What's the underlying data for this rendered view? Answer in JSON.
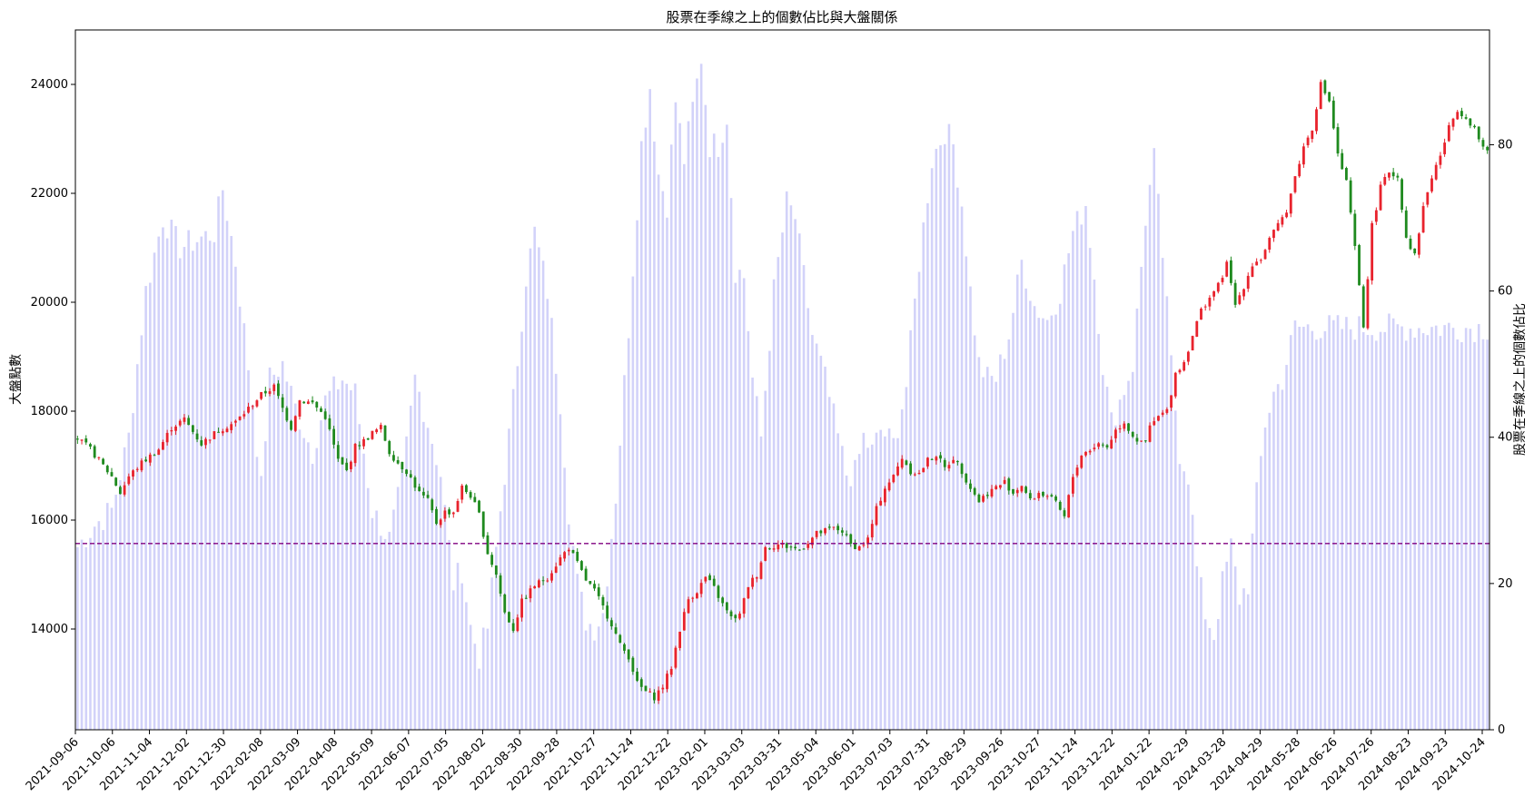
{
  "chart_data": {
    "type": "candlestick+bar",
    "title": "股票在季線之上的個數佔比與大盤關係",
    "ylabel_left": "大盤點數",
    "ylabel_right": "股票在季線之上的個數佔比",
    "x_range": [
      "2021-09-06",
      "2024-10-24"
    ],
    "x_tick_labels": [
      "2021-09-06",
      "2021-10-06",
      "2021-11-04",
      "2021-12-02",
      "2021-12-30",
      "2022-02-08",
      "2022-03-09",
      "2022-04-08",
      "2022-05-09",
      "2022-06-07",
      "2022-07-05",
      "2022-08-02",
      "2022-08-30",
      "2022-09-28",
      "2022-10-27",
      "2022-11-24",
      "2022-12-22",
      "2023-02-01",
      "2023-03-03",
      "2023-03-31",
      "2023-05-04",
      "2023-06-01",
      "2023-07-03",
      "2023-07-31",
      "2023-08-29",
      "2023-09-26",
      "2023-10-27",
      "2023-11-24",
      "2023-12-22",
      "2024-01-22",
      "2024-02-29",
      "2024-03-28",
      "2024-04-29",
      "2024-05-28",
      "2024-06-26",
      "2024-07-26",
      "2024-08-23",
      "2024-09-23",
      "2024-10-24"
    ],
    "y_left_ticks": [
      14000,
      16000,
      18000,
      20000,
      22000,
      24000
    ],
    "y_left_range": [
      12150,
      25000
    ],
    "y_right_ticks": [
      0,
      20,
      40,
      60,
      80
    ],
    "y_right_range": [
      0,
      95.7
    ],
    "reference_line": {
      "value": 15570,
      "axis": "left",
      "style": "dashed",
      "color": "#800080"
    },
    "colors": {
      "up": "#e8232d",
      "down": "#1f8a1f",
      "bar": "#b4b4f5"
    },
    "index_close_anchors": [
      [
        0,
        17500
      ],
      [
        3,
        17300
      ],
      [
        5,
        17100
      ],
      [
        8,
        16800
      ],
      [
        10,
        16500
      ],
      [
        12,
        16800
      ],
      [
        15,
        17050
      ],
      [
        19,
        17300
      ],
      [
        22,
        17700
      ],
      [
        25,
        17850
      ],
      [
        29,
        17400
      ],
      [
        33,
        17650
      ],
      [
        37,
        17800
      ],
      [
        40,
        18050
      ],
      [
        43,
        18300
      ],
      [
        46,
        18450
      ],
      [
        48,
        18050
      ],
      [
        50,
        17700
      ],
      [
        52,
        18200
      ],
      [
        55,
        18150
      ],
      [
        58,
        17900
      ],
      [
        61,
        17100
      ],
      [
        63,
        16900
      ],
      [
        65,
        17350
      ],
      [
        67,
        17450
      ],
      [
        69,
        17600
      ],
      [
        71,
        17700
      ],
      [
        73,
        17250
      ],
      [
        75,
        17050
      ],
      [
        77,
        16900
      ],
      [
        80,
        16500
      ],
      [
        82,
        16350
      ],
      [
        84,
        15950
      ],
      [
        86,
        16150
      ],
      [
        88,
        16150
      ],
      [
        90,
        16600
      ],
      [
        92,
        16450
      ],
      [
        94,
        16100
      ],
      [
        96,
        15400
      ],
      [
        98,
        15000
      ],
      [
        100,
        14300
      ],
      [
        102,
        14000
      ],
      [
        104,
        14500
      ],
      [
        107,
        14800
      ],
      [
        110,
        14950
      ],
      [
        113,
        15300
      ],
      [
        115,
        15500
      ],
      [
        117,
        15200
      ],
      [
        119,
        14900
      ],
      [
        121,
        14700
      ],
      [
        123,
        14400
      ],
      [
        125,
        14100
      ],
      [
        127,
        13700
      ],
      [
        129,
        13500
      ],
      [
        131,
        13000
      ],
      [
        133,
        12850
      ],
      [
        135,
        12750
      ],
      [
        137,
        12950
      ],
      [
        139,
        13300
      ],
      [
        141,
        14000
      ],
      [
        143,
        14550
      ],
      [
        145,
        14700
      ],
      [
        147,
        14950
      ],
      [
        149,
        14750
      ],
      [
        151,
        14450
      ],
      [
        153,
        14200
      ],
      [
        155,
        14250
      ],
      [
        157,
        14800
      ],
      [
        159,
        15000
      ],
      [
        161,
        15500
      ],
      [
        164,
        15550
      ],
      [
        167,
        15500
      ],
      [
        169,
        15450
      ],
      [
        171,
        15600
      ],
      [
        173,
        15750
      ],
      [
        175,
        15800
      ],
      [
        177,
        15850
      ],
      [
        179,
        15800
      ],
      [
        181,
        15550
      ],
      [
        183,
        15500
      ],
      [
        185,
        15650
      ],
      [
        187,
        16200
      ],
      [
        189,
        16600
      ],
      [
        191,
        16800
      ],
      [
        193,
        17150
      ],
      [
        195,
        16900
      ],
      [
        197,
        16850
      ],
      [
        199,
        17100
      ],
      [
        201,
        17200
      ],
      [
        203,
        16950
      ],
      [
        205,
        17150
      ],
      [
        207,
        16900
      ],
      [
        209,
        16600
      ],
      [
        211,
        16350
      ],
      [
        213,
        16500
      ],
      [
        215,
        16600
      ],
      [
        217,
        16700
      ],
      [
        219,
        16500
      ],
      [
        221,
        16650
      ],
      [
        223,
        16350
      ],
      [
        225,
        16500
      ],
      [
        227,
        16450
      ],
      [
        229,
        16300
      ],
      [
        231,
        16050
      ],
      [
        233,
        16800
      ],
      [
        235,
        17200
      ],
      [
        237,
        17300
      ],
      [
        239,
        17400
      ],
      [
        241,
        17350
      ],
      [
        243,
        17650
      ],
      [
        245,
        17800
      ],
      [
        247,
        17550
      ],
      [
        249,
        17400
      ],
      [
        250,
        17450
      ],
      [
        251,
        17700
      ],
      [
        253,
        17900
      ],
      [
        255,
        18000
      ],
      [
        257,
        18700
      ],
      [
        259,
        18900
      ],
      [
        261,
        19400
      ],
      [
        263,
        19850
      ],
      [
        265,
        20100
      ],
      [
        267,
        20300
      ],
      [
        269,
        20700
      ],
      [
        271,
        19950
      ],
      [
        273,
        20300
      ],
      [
        275,
        20700
      ],
      [
        277,
        20800
      ],
      [
        279,
        21150
      ],
      [
        281,
        21400
      ],
      [
        283,
        21700
      ],
      [
        285,
        22300
      ],
      [
        287,
        22850
      ],
      [
        289,
        23200
      ],
      [
        291,
        24000
      ],
      [
        293,
        23700
      ],
      [
        295,
        22700
      ],
      [
        297,
        22200
      ],
      [
        299,
        21000
      ],
      [
        301,
        19550
      ],
      [
        303,
        21400
      ],
      [
        305,
        22100
      ],
      [
        307,
        22400
      ],
      [
        309,
        22300
      ],
      [
        311,
        21200
      ],
      [
        313,
        20850
      ],
      [
        315,
        21750
      ],
      [
        317,
        22300
      ],
      [
        319,
        22700
      ],
      [
        321,
        23200
      ],
      [
        323,
        23550
      ],
      [
        325,
        23400
      ],
      [
        327,
        23200
      ],
      [
        329,
        22800
      ]
    ],
    "breadth_pct_anchors": [
      [
        0,
        25
      ],
      [
        4,
        28
      ],
      [
        8,
        30
      ],
      [
        12,
        40
      ],
      [
        16,
        60
      ],
      [
        20,
        70
      ],
      [
        24,
        66
      ],
      [
        28,
        67
      ],
      [
        32,
        68
      ],
      [
        34,
        74
      ],
      [
        37,
        64
      ],
      [
        41,
        45
      ],
      [
        43,
        33
      ],
      [
        45,
        48
      ],
      [
        48,
        50
      ],
      [
        51,
        44
      ],
      [
        55,
        38
      ],
      [
        58,
        45
      ],
      [
        62,
        48
      ],
      [
        65,
        46
      ],
      [
        69,
        30
      ],
      [
        73,
        26
      ],
      [
        76,
        34
      ],
      [
        79,
        48
      ],
      [
        82,
        42
      ],
      [
        85,
        35
      ],
      [
        88,
        20
      ],
      [
        90,
        22
      ],
      [
        92,
        14
      ],
      [
        94,
        10
      ],
      [
        96,
        14
      ],
      [
        99,
        30
      ],
      [
        102,
        45
      ],
      [
        105,
        62
      ],
      [
        107,
        68
      ],
      [
        110,
        60
      ],
      [
        113,
        45
      ],
      [
        115,
        30
      ],
      [
        117,
        20
      ],
      [
        119,
        15
      ],
      [
        121,
        14
      ],
      [
        123,
        16
      ],
      [
        126,
        32
      ],
      [
        129,
        55
      ],
      [
        132,
        80
      ],
      [
        134,
        88
      ],
      [
        136,
        76
      ],
      [
        138,
        72
      ],
      [
        140,
        86
      ],
      [
        142,
        78
      ],
      [
        144,
        85
      ],
      [
        146,
        92
      ],
      [
        148,
        80
      ],
      [
        150,
        80
      ],
      [
        152,
        84
      ],
      [
        154,
        63
      ],
      [
        156,
        62
      ],
      [
        158,
        48
      ],
      [
        160,
        40
      ],
      [
        163,
        60
      ],
      [
        166,
        72
      ],
      [
        168,
        70
      ],
      [
        170,
        62
      ],
      [
        172,
        54
      ],
      [
        175,
        48
      ],
      [
        178,
        40
      ],
      [
        180,
        35
      ],
      [
        182,
        35
      ],
      [
        184,
        40
      ],
      [
        186,
        38
      ],
      [
        188,
        41
      ],
      [
        191,
        39
      ],
      [
        194,
        47
      ],
      [
        197,
        64
      ],
      [
        200,
        78
      ],
      [
        203,
        82
      ],
      [
        205,
        80
      ],
      [
        207,
        72
      ],
      [
        209,
        60
      ],
      [
        211,
        50
      ],
      [
        213,
        48
      ],
      [
        215,
        48
      ],
      [
        218,
        54
      ],
      [
        221,
        64
      ],
      [
        224,
        58
      ],
      [
        227,
        56
      ],
      [
        230,
        60
      ],
      [
        233,
        68
      ],
      [
        236,
        72
      ],
      [
        238,
        62
      ],
      [
        240,
        50
      ],
      [
        242,
        42
      ],
      [
        244,
        45
      ],
      [
        247,
        50
      ],
      [
        250,
        70
      ],
      [
        252,
        78
      ],
      [
        254,
        65
      ],
      [
        256,
        50
      ],
      [
        258,
        38
      ],
      [
        260,
        35
      ],
      [
        262,
        22
      ],
      [
        264,
        16
      ],
      [
        266,
        13
      ],
      [
        268,
        20
      ],
      [
        270,
        25
      ],
      [
        272,
        18
      ],
      [
        274,
        20
      ],
      [
        276,
        32
      ],
      [
        278,
        42
      ],
      [
        280,
        46
      ],
      [
        282,
        48
      ],
      [
        285,
        55
      ]
    ]
  }
}
